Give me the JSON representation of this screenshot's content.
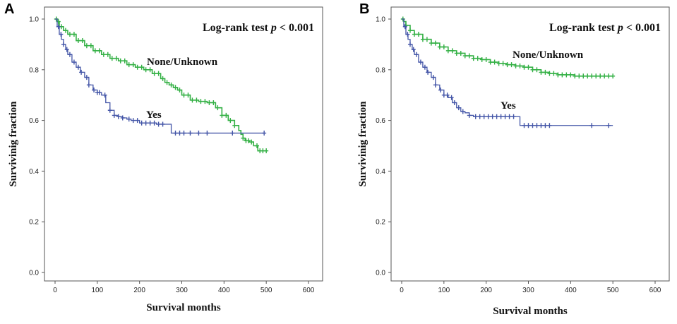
{
  "chart_data": [
    {
      "type": "line",
      "panel_label": "A",
      "title": "",
      "annotation": "Log-rank test",
      "annotation_p": "p",
      "annotation_value": " < 0.001",
      "xlabel": "Survival months",
      "ylabel": "Survivinig fraction",
      "xlim": [
        0,
        600
      ],
      "ylim": [
        0,
        1.0
      ],
      "xticks": [
        "0",
        "100",
        "200",
        "300",
        "400",
        "500",
        "600"
      ],
      "yticks": [
        "0.0",
        "0.2",
        "0.4",
        "0.6",
        "0.8",
        "1.0"
      ],
      "grid": false,
      "series": [
        {
          "name": "None/Unknown",
          "color": "#33b044",
          "x": [
            0,
            5,
            10,
            20,
            30,
            50,
            70,
            90,
            110,
            130,
            150,
            170,
            190,
            210,
            230,
            250,
            260,
            270,
            280,
            290,
            300,
            320,
            340,
            360,
            380,
            395,
            410,
            425,
            435,
            440,
            445,
            450,
            460,
            470,
            480,
            500
          ],
          "y": [
            1.0,
            0.99,
            0.97,
            0.955,
            0.94,
            0.915,
            0.895,
            0.875,
            0.86,
            0.845,
            0.835,
            0.82,
            0.81,
            0.8,
            0.785,
            0.765,
            0.75,
            0.74,
            0.73,
            0.72,
            0.7,
            0.68,
            0.675,
            0.67,
            0.65,
            0.62,
            0.6,
            0.58,
            0.56,
            0.545,
            0.53,
            0.52,
            0.515,
            0.5,
            0.48,
            0.48
          ],
          "censor_x": [
            3,
            8,
            15,
            25,
            35,
            45,
            55,
            65,
            75,
            85,
            95,
            105,
            115,
            125,
            135,
            145,
            155,
            165,
            175,
            185,
            195,
            205,
            215,
            225,
            235,
            245,
            255,
            265,
            275,
            285,
            295,
            305,
            315,
            325,
            335,
            345,
            355,
            365,
            375,
            385,
            395,
            405,
            415,
            425,
            445,
            452,
            458,
            465,
            478,
            485,
            492,
            500
          ]
        },
        {
          "name": "Yes",
          "color": "#4355a7",
          "x": [
            0,
            5,
            10,
            15,
            20,
            25,
            30,
            40,
            50,
            60,
            70,
            80,
            90,
            100,
            110,
            120,
            130,
            140,
            150,
            160,
            170,
            180,
            200,
            220,
            240,
            260,
            270,
            275,
            280,
            300,
            350,
            400,
            440,
            460,
            480,
            495
          ],
          "y": [
            1.0,
            0.97,
            0.94,
            0.92,
            0.9,
            0.88,
            0.86,
            0.83,
            0.81,
            0.79,
            0.77,
            0.74,
            0.72,
            0.71,
            0.7,
            0.67,
            0.64,
            0.62,
            0.615,
            0.61,
            0.605,
            0.6,
            0.59,
            0.59,
            0.585,
            0.585,
            0.585,
            0.55,
            0.55,
            0.55,
            0.55,
            0.55,
            0.55,
            0.55,
            0.55,
            0.55
          ],
          "censor_x": [
            8,
            14,
            20,
            28,
            35,
            45,
            55,
            62,
            75,
            80,
            92,
            100,
            105,
            118,
            130,
            140,
            150,
            160,
            175,
            185,
            195,
            205,
            215,
            225,
            235,
            245,
            255,
            285,
            295,
            305,
            320,
            340,
            360,
            420,
            495
          ]
        }
      ]
    },
    {
      "type": "line",
      "panel_label": "B",
      "title": "",
      "annotation": "Log-rank test",
      "annotation_p": "p",
      "annotation_value": " < 0.001",
      "xlabel": "Survival months",
      "ylabel": "Survivinig fraction",
      "xlim": [
        0,
        600
      ],
      "ylim": [
        0,
        1.0
      ],
      "xticks": [
        "0",
        "100",
        "200",
        "300",
        "400",
        "500",
        "600"
      ],
      "yticks": [
        "0.0",
        "0.2",
        "0.4",
        "0.6",
        "0.8",
        "1.0"
      ],
      "grid": false,
      "series": [
        {
          "name": "None/Unknown",
          "color": "#33b044",
          "x": [
            0,
            5,
            10,
            20,
            30,
            50,
            70,
            90,
            110,
            130,
            150,
            170,
            190,
            210,
            230,
            250,
            270,
            290,
            310,
            330,
            350,
            370,
            390,
            410,
            430,
            450,
            470,
            490,
            500
          ],
          "y": [
            1.0,
            0.99,
            0.975,
            0.955,
            0.94,
            0.92,
            0.905,
            0.89,
            0.875,
            0.865,
            0.855,
            0.845,
            0.84,
            0.83,
            0.825,
            0.82,
            0.815,
            0.81,
            0.8,
            0.79,
            0.785,
            0.78,
            0.78,
            0.775,
            0.775,
            0.775,
            0.775,
            0.775,
            0.775
          ],
          "censor_x": [
            3,
            10,
            20,
            30,
            40,
            50,
            60,
            70,
            80,
            90,
            100,
            110,
            120,
            130,
            140,
            150,
            160,
            170,
            180,
            190,
            200,
            210,
            220,
            230,
            240,
            250,
            260,
            270,
            280,
            290,
            300,
            310,
            320,
            330,
            340,
            350,
            360,
            370,
            380,
            390,
            400,
            410,
            420,
            430,
            440,
            450,
            460,
            470,
            480,
            490,
            500
          ]
        },
        {
          "name": "Yes",
          "color": "#4355a7",
          "x": [
            0,
            5,
            10,
            15,
            20,
            25,
            30,
            40,
            50,
            60,
            70,
            80,
            90,
            100,
            110,
            120,
            130,
            140,
            150,
            160,
            170,
            180,
            200,
            220,
            240,
            260,
            275,
            280,
            300,
            350,
            400,
            450,
            490,
            500
          ],
          "y": [
            1.0,
            0.97,
            0.94,
            0.92,
            0.9,
            0.88,
            0.86,
            0.83,
            0.81,
            0.79,
            0.77,
            0.74,
            0.72,
            0.7,
            0.69,
            0.67,
            0.65,
            0.635,
            0.63,
            0.62,
            0.615,
            0.615,
            0.615,
            0.615,
            0.615,
            0.615,
            0.615,
            0.58,
            0.58,
            0.58,
            0.58,
            0.58,
            0.58,
            0.58
          ],
          "censor_x": [
            8,
            14,
            20,
            28,
            35,
            45,
            55,
            62,
            75,
            80,
            92,
            100,
            108,
            118,
            125,
            135,
            145,
            160,
            175,
            185,
            195,
            205,
            215,
            225,
            235,
            245,
            255,
            265,
            290,
            300,
            310,
            320,
            330,
            340,
            350,
            450,
            490
          ]
        }
      ]
    }
  ]
}
